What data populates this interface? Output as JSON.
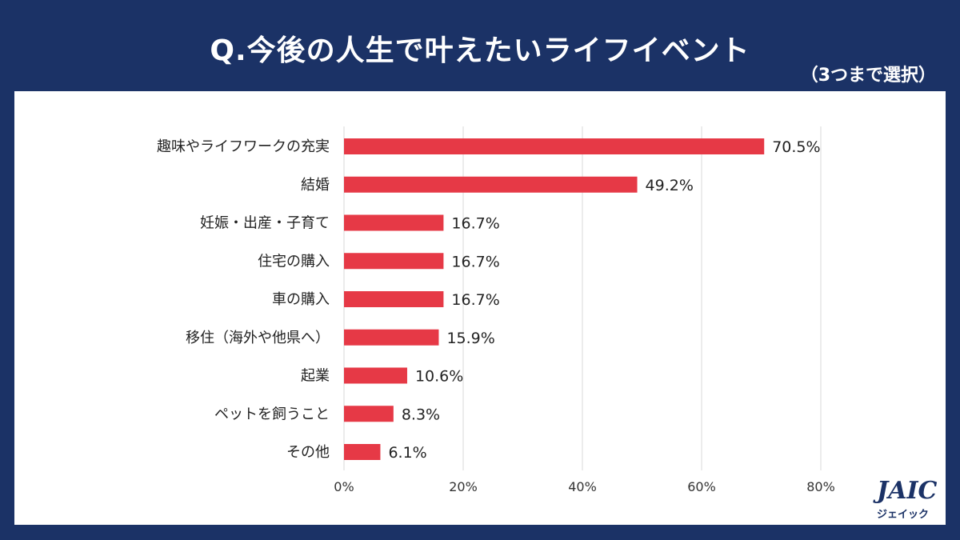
{
  "title": "Q.今後の人生で叶えたいライフイベント",
  "subtitle": "（3つまで選択）",
  "logo": {
    "main": "JAIC",
    "sub": "ジェイック"
  },
  "colors": {
    "bar": "#e63946",
    "background": "#1b3266",
    "panel": "#ffffff",
    "grid": "#d9d9d9"
  },
  "chart_data": {
    "type": "bar",
    "orientation": "horizontal",
    "categories": [
      "趣味やライフワークの充実",
      "結婚",
      "妊娠・出産・子育て",
      "住宅の購入",
      "車の購入",
      "移住（海外や他県へ）",
      "起業",
      "ペットを飼うこと",
      "その他"
    ],
    "values": [
      70.5,
      49.2,
      16.7,
      16.7,
      16.7,
      15.9,
      10.6,
      8.3,
      6.1
    ],
    "value_labels": [
      "70.5%",
      "49.2%",
      "16.7%",
      "16.7%",
      "16.7%",
      "15.9%",
      "10.6%",
      "8.3%",
      "6.1%"
    ],
    "xlim": [
      0,
      80
    ],
    "xticks": [
      0,
      20,
      40,
      60,
      80
    ],
    "xtick_labels": [
      "0%",
      "20%",
      "40%",
      "60%",
      "80%"
    ],
    "grid": true
  }
}
